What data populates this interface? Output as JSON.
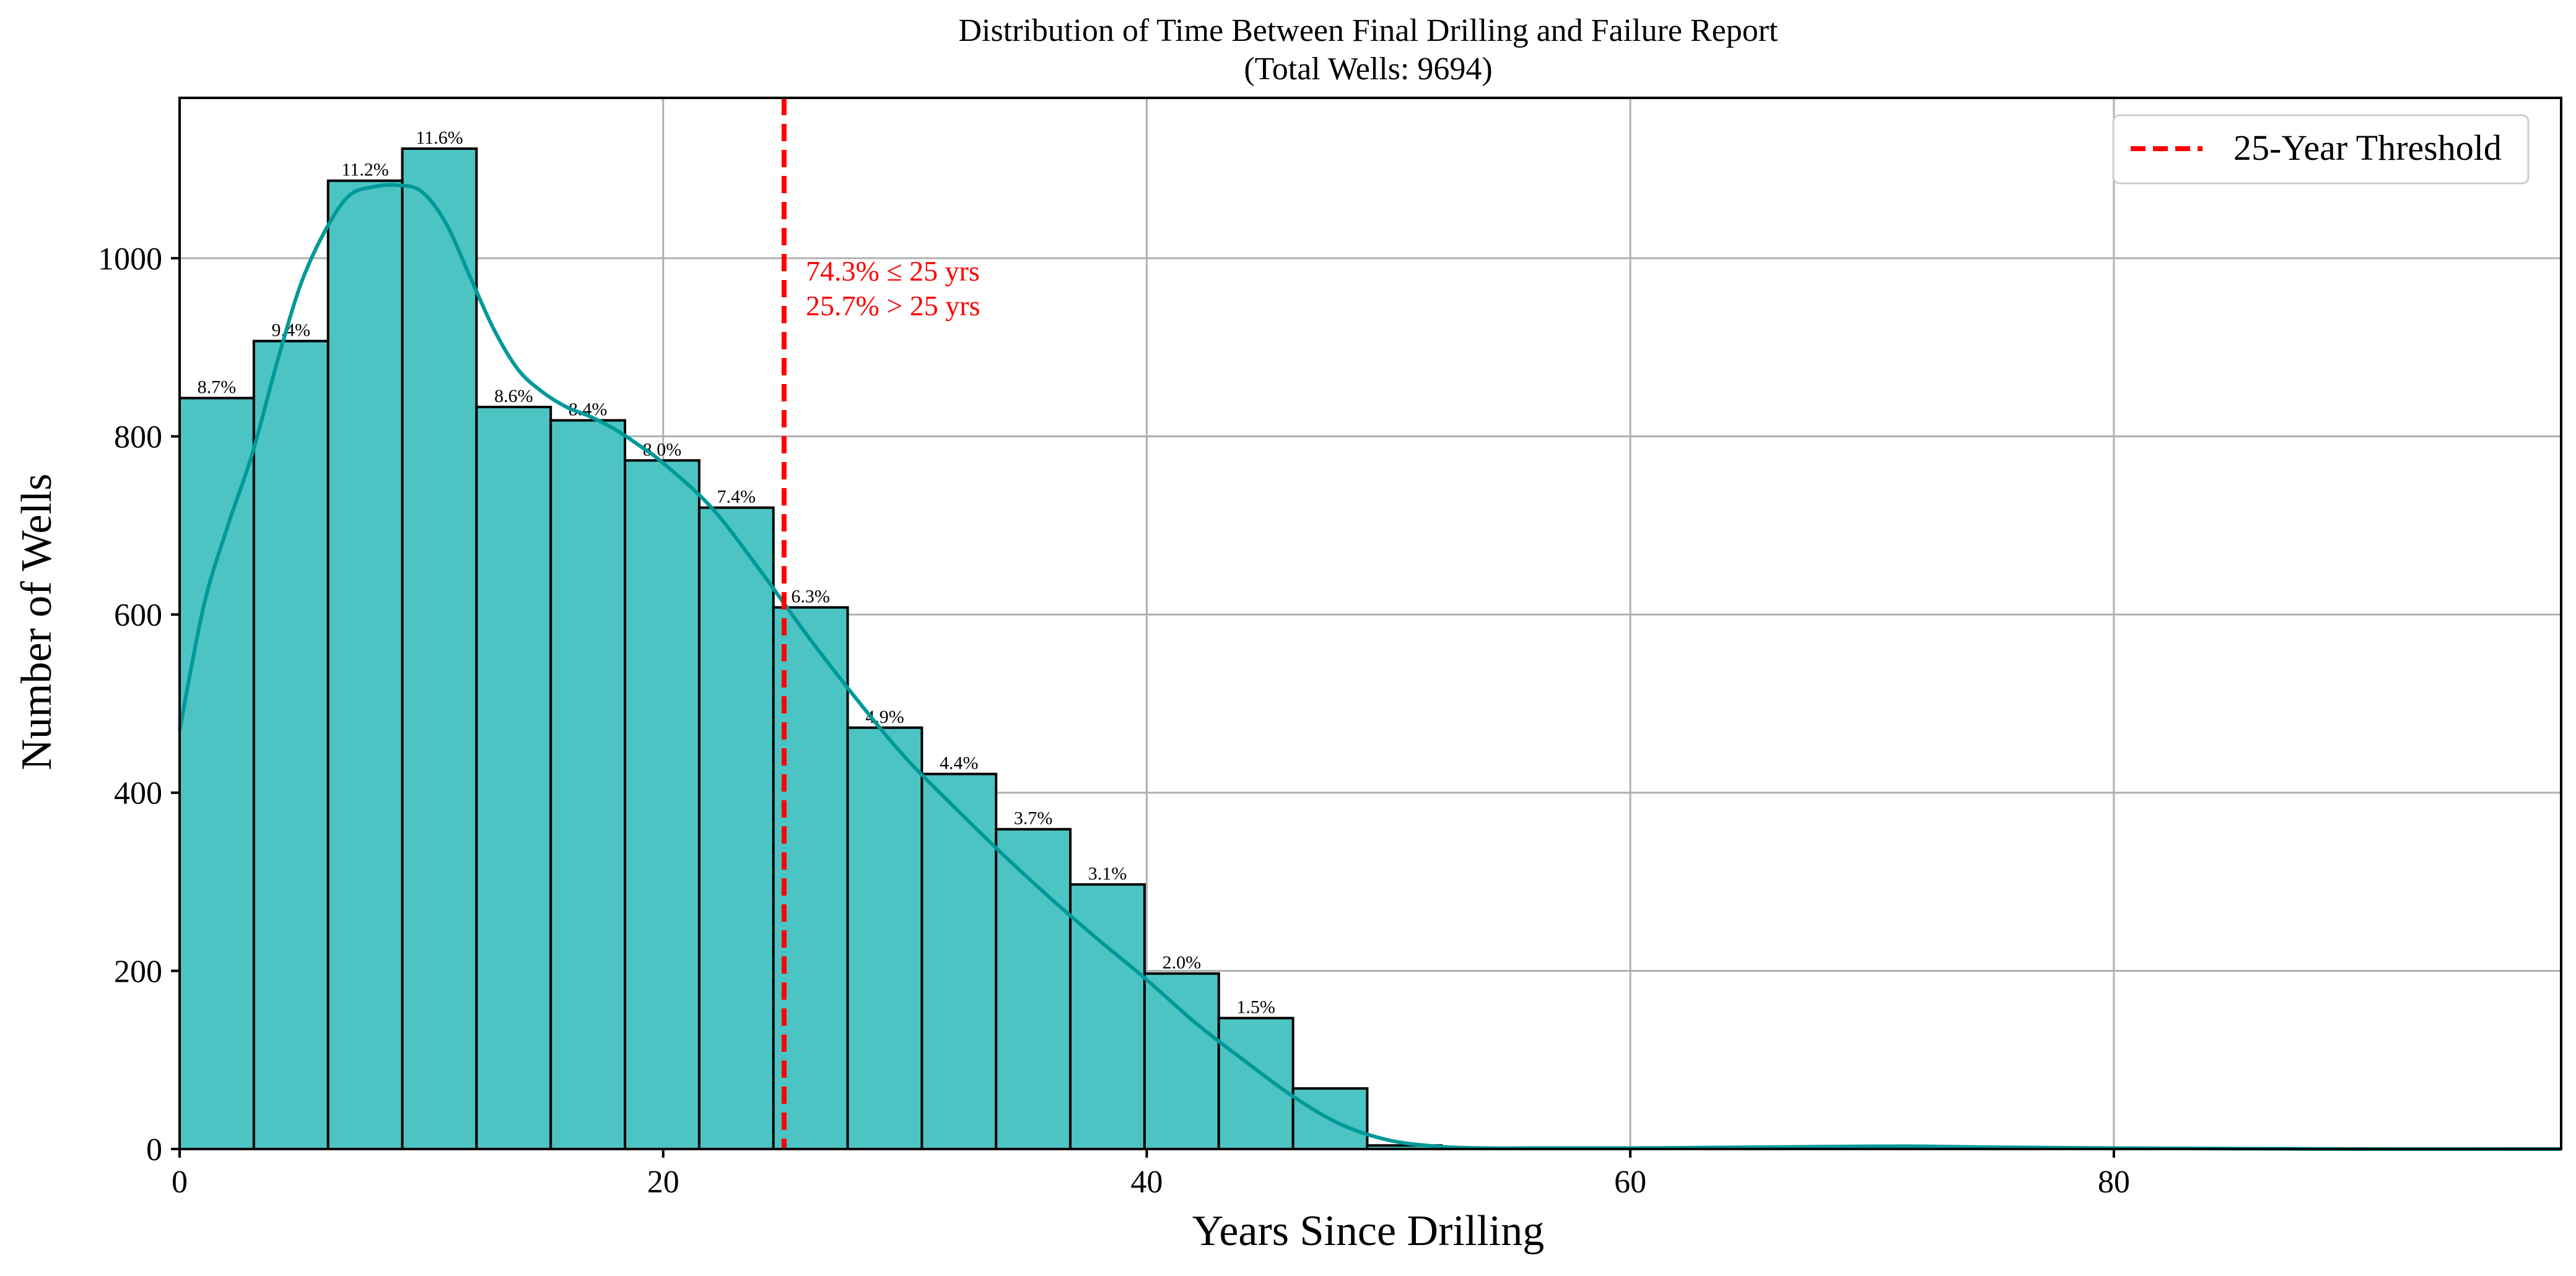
{
  "chart_data": {
    "type": "bar",
    "title": "Distribution of Time Between Final Drilling and Failure Report",
    "subtitle": "(Total Wells: 9694)",
    "xlabel": "Years Since Drilling",
    "ylabel": "Number of Wells",
    "xlim": [
      0,
      98.5
    ],
    "ylim": [
      0,
      1180
    ],
    "xticks": [
      0,
      20,
      40,
      60,
      80
    ],
    "yticks": [
      0,
      200,
      400,
      600,
      800,
      1000
    ],
    "grid": true,
    "legend_position": "top-right",
    "bin_width": 3.07,
    "bins": [
      {
        "x0": 0.0,
        "x1": 3.07,
        "count": 843,
        "label": "8.7%"
      },
      {
        "x0": 3.07,
        "x1": 6.14,
        "count": 907,
        "label": "9.4%"
      },
      {
        "x0": 6.14,
        "x1": 9.21,
        "count": 1087,
        "label": "11.2%"
      },
      {
        "x0": 9.21,
        "x1": 12.28,
        "count": 1123,
        "label": "11.6%"
      },
      {
        "x0": 12.28,
        "x1": 15.35,
        "count": 833,
        "label": "8.6%"
      },
      {
        "x0": 15.35,
        "x1": 18.42,
        "count": 818,
        "label": "8.4%"
      },
      {
        "x0": 18.42,
        "x1": 21.49,
        "count": 773,
        "label": "8.0%"
      },
      {
        "x0": 21.49,
        "x1": 24.56,
        "count": 720,
        "label": "7.4%"
      },
      {
        "x0": 24.56,
        "x1": 27.63,
        "count": 608,
        "label": "6.3%"
      },
      {
        "x0": 27.63,
        "x1": 30.7,
        "count": 473,
        "label": "4.9%"
      },
      {
        "x0": 30.7,
        "x1": 33.77,
        "count": 421,
        "label": "4.4%"
      },
      {
        "x0": 33.77,
        "x1": 36.84,
        "count": 359,
        "label": "3.7%"
      },
      {
        "x0": 36.84,
        "x1": 39.91,
        "count": 297,
        "label": "3.1%"
      },
      {
        "x0": 39.91,
        "x1": 42.98,
        "count": 197,
        "label": "2.0%"
      },
      {
        "x0": 42.98,
        "x1": 46.05,
        "count": 147,
        "label": "1.5%"
      },
      {
        "x0": 46.05,
        "x1": 49.12,
        "count": 68,
        "label": ""
      },
      {
        "x0": 49.12,
        "x1": 52.19,
        "count": 4,
        "label": ""
      }
    ],
    "kde": {
      "x": [
        0,
        1,
        2,
        3,
        4,
        5,
        6,
        7,
        8,
        9,
        10,
        11,
        12,
        13,
        14,
        15,
        16,
        17,
        18,
        19,
        20,
        22,
        24,
        26,
        28,
        30,
        32,
        34,
        36,
        38,
        40,
        42,
        44,
        46,
        48,
        50,
        52,
        54,
        56,
        60,
        65,
        70,
        72,
        75,
        80,
        90,
        98.5
      ],
      "y": [
        470,
        610,
        700,
        780,
        880,
        970,
        1030,
        1070,
        1080,
        1082,
        1075,
        1040,
        980,
        920,
        875,
        850,
        833,
        822,
        808,
        790,
        770,
        720,
        650,
        575,
        505,
        440,
        385,
        332,
        282,
        235,
        190,
        142,
        100,
        60,
        28,
        10,
        3,
        1,
        1,
        1,
        2,
        3,
        3,
        2,
        1,
        0,
        0
      ],
      "color": "#009999"
    },
    "threshold": {
      "x": 25,
      "label": "25-Year Threshold",
      "color": "#ff0000"
    },
    "annotation": {
      "lines": [
        "74.3% ≤ 25 yrs",
        "25.7% > 25 yrs"
      ],
      "x": 25.9,
      "y": 975,
      "color": "#ff0000"
    },
    "bar_color": "#4cc4c4",
    "bar_edge_color": "#000000"
  }
}
